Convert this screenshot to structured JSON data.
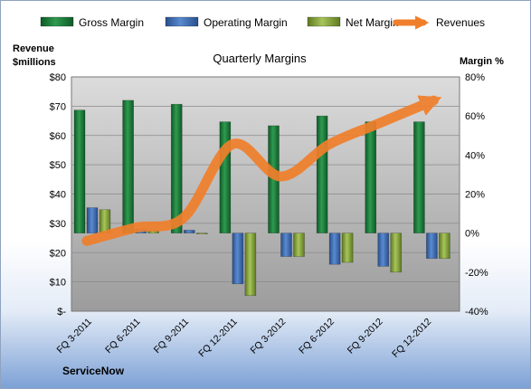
{
  "company": "ServiceNow",
  "chart_data": {
    "type": "bar",
    "title": "Quarterly Margins",
    "categories": [
      "FQ 3-2011",
      "FQ 6-2011",
      "FQ 9-2011",
      "FQ 12-2011",
      "FQ 3-2012",
      "FQ 6-2012",
      "FQ 9-2012",
      "FQ 12-2012"
    ],
    "series": [
      {
        "name": "Gross Margin",
        "axis": "right",
        "color": "#1f7a3c",
        "values": [
          63,
          68,
          66,
          57,
          55,
          60,
          57,
          57
        ]
      },
      {
        "name": "Operating Margin",
        "axis": "right",
        "color": "#3c6fb4",
        "values": [
          13,
          2,
          1.5,
          -26,
          -12,
          -16,
          -17,
          -13
        ]
      },
      {
        "name": "Net Margin",
        "axis": "right",
        "color": "#86a83a",
        "values": [
          12,
          1,
          0,
          -32,
          -12,
          -15,
          -20,
          -13
        ]
      },
      {
        "name": "Revenues",
        "axis": "left",
        "type": "line",
        "color": "#f07f2b",
        "values": [
          24,
          28.5,
          32,
          57,
          46,
          57,
          64,
          71
        ]
      }
    ],
    "left_axis": {
      "label": "Revenue $millions",
      "min": 0,
      "max": 80,
      "ticks": [
        "$-",
        "$10",
        "$20",
        "$30",
        "$40",
        "$50",
        "$60",
        "$70",
        "$80"
      ]
    },
    "right_axis": {
      "label": "Margin %",
      "min": -40,
      "max": 80,
      "ticks": [
        "-40%",
        "-20%",
        "0%",
        "20%",
        "40%",
        "60%",
        "80%"
      ]
    },
    "legend": "top",
    "grid": true
  }
}
